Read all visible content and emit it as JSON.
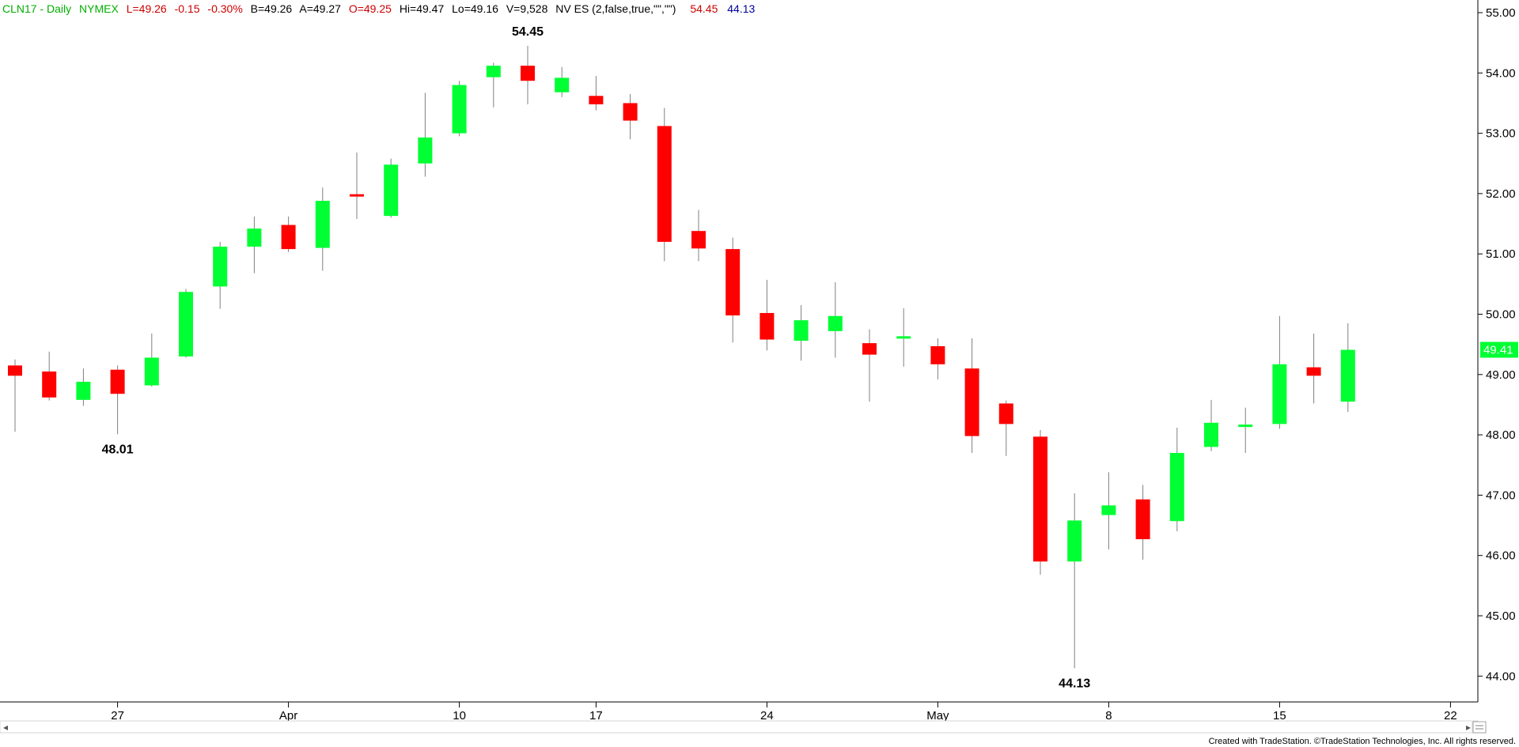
{
  "header": {
    "symbol": "CLN17 - Daily",
    "exchange": "NYMEX",
    "last": "L=49.26",
    "change": "-0.15",
    "change_pct": "-0.30%",
    "bid": "B=49.26",
    "ask": "A=49.27",
    "open": "O=49.25",
    "high": "Hi=49.47",
    "low": "Lo=49.16",
    "volume": "V=9,528",
    "indicator": "NV ES (2,false,true,\"\",\"\")",
    "ind_high": "54.45",
    "ind_low": "44.13"
  },
  "footer": {
    "credit": "Created with TradeStation. ©TradeStation Technologies, Inc. All rights reserved."
  },
  "colors": {
    "up": "#00ff33",
    "down": "#ff0000",
    "wick": "#808080",
    "last_price_bg": "#00ff33",
    "header_green": "#00b000",
    "header_red": "#cc0000",
    "header_blue": "#000099"
  },
  "chart_data": {
    "type": "candlestick",
    "title": "CLN17 - Daily",
    "ylim": [
      43.5,
      55.15
    ],
    "y_ticks": [
      "44.00",
      "45.00",
      "46.00",
      "47.00",
      "48.00",
      "49.00",
      "50.00",
      "51.00",
      "52.00",
      "53.00",
      "54.00",
      "55.00"
    ],
    "x_ticks": [
      {
        "label": "27",
        "index": 3
      },
      {
        "label": "Apr",
        "index": 8
      },
      {
        "label": "10",
        "index": 13
      },
      {
        "label": "17",
        "index": 17
      },
      {
        "label": "24",
        "index": 22
      },
      {
        "label": "May",
        "index": 27
      },
      {
        "label": "8",
        "index": 32
      },
      {
        "label": "15",
        "index": 37
      },
      {
        "label": "22",
        "index": 42
      }
    ],
    "last_price": "49.41",
    "annotations": [
      {
        "text": "48.01",
        "index": 3,
        "price": 48.01,
        "position": "below"
      },
      {
        "text": "54.45",
        "index": 15,
        "price": 54.45,
        "position": "above"
      },
      {
        "text": "44.13",
        "index": 31,
        "price": 44.13,
        "position": "below"
      }
    ],
    "candles": [
      {
        "o": 49.15,
        "h": 49.25,
        "l": 48.05,
        "c": 48.98
      },
      {
        "o": 49.05,
        "h": 49.38,
        "l": 48.57,
        "c": 48.62
      },
      {
        "o": 48.58,
        "h": 49.1,
        "l": 48.48,
        "c": 48.88
      },
      {
        "o": 49.08,
        "h": 49.15,
        "l": 48.01,
        "c": 48.68
      },
      {
        "o": 48.82,
        "h": 49.68,
        "l": 48.8,
        "c": 49.28
      },
      {
        "o": 49.3,
        "h": 50.42,
        "l": 49.28,
        "c": 50.37
      },
      {
        "o": 50.46,
        "h": 51.2,
        "l": 50.09,
        "c": 51.12
      },
      {
        "o": 51.12,
        "h": 51.62,
        "l": 50.68,
        "c": 51.42
      },
      {
        "o": 51.48,
        "h": 51.62,
        "l": 51.03,
        "c": 51.08
      },
      {
        "o": 51.1,
        "h": 52.1,
        "l": 50.72,
        "c": 51.88
      },
      {
        "o": 51.98,
        "h": 52.68,
        "l": 51.58,
        "c": 51.96
      },
      {
        "o": 51.63,
        "h": 52.58,
        "l": 51.6,
        "c": 52.48
      },
      {
        "o": 52.5,
        "h": 53.67,
        "l": 52.28,
        "c": 52.93
      },
      {
        "o": 53.0,
        "h": 53.87,
        "l": 52.95,
        "c": 53.8
      },
      {
        "o": 53.93,
        "h": 54.17,
        "l": 53.43,
        "c": 54.12
      },
      {
        "o": 54.12,
        "h": 54.45,
        "l": 53.48,
        "c": 53.87
      },
      {
        "o": 53.68,
        "h": 54.1,
        "l": 53.6,
        "c": 53.92
      },
      {
        "o": 53.62,
        "h": 53.95,
        "l": 53.38,
        "c": 53.48
      },
      {
        "o": 53.5,
        "h": 53.65,
        "l": 52.9,
        "c": 53.21
      },
      {
        "o": 53.12,
        "h": 53.42,
        "l": 50.88,
        "c": 51.2
      },
      {
        "o": 51.38,
        "h": 51.73,
        "l": 50.88,
        "c": 51.09
      },
      {
        "o": 51.08,
        "h": 51.27,
        "l": 49.53,
        "c": 49.98
      },
      {
        "o": 50.02,
        "h": 50.57,
        "l": 49.4,
        "c": 49.58
      },
      {
        "o": 49.56,
        "h": 50.15,
        "l": 49.23,
        "c": 49.9
      },
      {
        "o": 49.72,
        "h": 50.53,
        "l": 49.28,
        "c": 49.97
      },
      {
        "o": 49.52,
        "h": 49.75,
        "l": 48.55,
        "c": 49.33
      },
      {
        "o": 49.6,
        "h": 50.1,
        "l": 49.13,
        "c": 49.63
      },
      {
        "o": 49.47,
        "h": 49.6,
        "l": 48.92,
        "c": 49.17
      },
      {
        "o": 49.1,
        "h": 49.6,
        "l": 47.7,
        "c": 47.98
      },
      {
        "o": 48.52,
        "h": 48.57,
        "l": 47.65,
        "c": 48.18
      },
      {
        "o": 47.97,
        "h": 48.08,
        "l": 45.68,
        "c": 45.9
      },
      {
        "o": 45.9,
        "h": 47.03,
        "l": 44.13,
        "c": 46.58
      },
      {
        "o": 46.67,
        "h": 47.38,
        "l": 46.1,
        "c": 46.83
      },
      {
        "o": 46.93,
        "h": 47.17,
        "l": 45.93,
        "c": 46.27
      },
      {
        "o": 46.57,
        "h": 48.12,
        "l": 46.4,
        "c": 47.7
      },
      {
        "o": 47.8,
        "h": 48.58,
        "l": 47.73,
        "c": 48.2
      },
      {
        "o": 48.13,
        "h": 48.45,
        "l": 47.7,
        "c": 48.17
      },
      {
        "o": 48.18,
        "h": 49.97,
        "l": 48.1,
        "c": 49.17
      },
      {
        "o": 49.12,
        "h": 49.68,
        "l": 48.52,
        "c": 48.98
      },
      {
        "o": 48.55,
        "h": 49.85,
        "l": 48.38,
        "c": 49.41
      }
    ]
  }
}
